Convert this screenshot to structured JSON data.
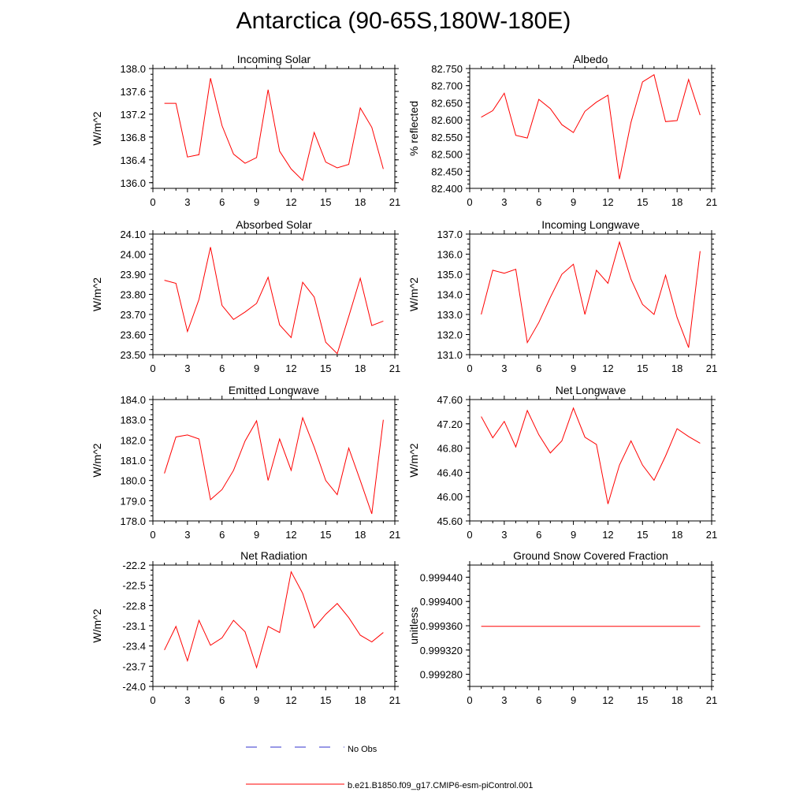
{
  "title": "Antarctica (90-65S,180W-180E)",
  "legend": {
    "obs_label": "No Obs",
    "obs_color": "#3333cc",
    "model_label": "b.e21.B1850.f09_g17.CMIP6-esm-piControl.001",
    "model_color": "#ff0000"
  },
  "chart_data": [
    {
      "type": "line",
      "title": "Incoming Solar",
      "xlabel": "",
      "ylabel": "W/m^2",
      "xlim": [
        0,
        21
      ],
      "xticks": [
        "0",
        "3",
        "6",
        "9",
        "12",
        "15",
        "18",
        "21"
      ],
      "ylim": [
        135.9,
        138.0
      ],
      "yticks": [
        "136.0",
        "136.4",
        "136.8",
        "137.2",
        "137.6",
        "138.0"
      ],
      "series": [
        {
          "name": "b.e21.B1850.f09_g17.CMIP6-esm-piControl.001",
          "color": "#ff0000",
          "x": [
            1,
            2,
            3,
            4,
            5,
            6,
            7,
            8,
            9,
            10,
            11,
            12,
            13,
            14,
            15,
            16,
            17,
            18,
            19,
            20
          ],
          "y": [
            137.39,
            137.39,
            136.45,
            136.49,
            137.83,
            137.0,
            136.5,
            136.34,
            136.44,
            137.63,
            136.55,
            136.24,
            136.04,
            136.88,
            136.36,
            136.26,
            136.32,
            137.31,
            136.97,
            136.24
          ]
        }
      ]
    },
    {
      "type": "line",
      "title": "Albedo",
      "xlabel": "",
      "ylabel": "% reflected",
      "xlim": [
        0,
        21
      ],
      "xticks": [
        "0",
        "3",
        "6",
        "9",
        "12",
        "15",
        "18",
        "21"
      ],
      "ylim": [
        82.4,
        82.75
      ],
      "yticks": [
        "82.400",
        "82.450",
        "82.500",
        "82.550",
        "82.600",
        "82.650",
        "82.700",
        "82.750"
      ],
      "series": [
        {
          "name": "b.e21.B1850.f09_g17.CMIP6-esm-piControl.001",
          "color": "#ff0000",
          "x": [
            1,
            2,
            3,
            4,
            5,
            6,
            7,
            8,
            9,
            10,
            11,
            12,
            13,
            14,
            15,
            16,
            17,
            18,
            19,
            20
          ],
          "y": [
            82.608,
            82.627,
            82.678,
            82.555,
            82.547,
            82.66,
            82.633,
            82.586,
            82.563,
            82.625,
            82.652,
            82.672,
            82.427,
            82.593,
            82.711,
            82.732,
            82.595,
            82.598,
            82.718,
            82.614
          ]
        }
      ]
    },
    {
      "type": "line",
      "title": "Absorbed Solar",
      "xlabel": "",
      "ylabel": "W/m^2",
      "xlim": [
        0,
        21
      ],
      "xticks": [
        "0",
        "3",
        "6",
        "9",
        "12",
        "15",
        "18",
        "21"
      ],
      "ylim": [
        23.5,
        24.1
      ],
      "yticks": [
        "23.50",
        "23.60",
        "23.70",
        "23.80",
        "23.90",
        "24.00",
        "24.10"
      ],
      "series": [
        {
          "name": "b.e21.B1850.f09_g17.CMIP6-esm-piControl.001",
          "color": "#ff0000",
          "x": [
            1,
            2,
            3,
            4,
            5,
            6,
            7,
            8,
            9,
            10,
            11,
            12,
            13,
            14,
            15,
            16,
            17,
            18,
            19,
            20
          ],
          "y": [
            23.87,
            23.855,
            23.615,
            23.775,
            24.035,
            23.745,
            23.675,
            23.712,
            23.755,
            23.885,
            23.648,
            23.585,
            23.86,
            23.787,
            23.562,
            23.505,
            23.69,
            23.88,
            23.645,
            23.667
          ]
        }
      ]
    },
    {
      "type": "line",
      "title": "Incoming Longwave",
      "xlabel": "",
      "ylabel": "W/m^2",
      "xlim": [
        0,
        21
      ],
      "xticks": [
        "0",
        "3",
        "6",
        "9",
        "12",
        "15",
        "18",
        "21"
      ],
      "ylim": [
        131.0,
        137.0
      ],
      "yticks": [
        "131.0",
        "132.0",
        "133.0",
        "134.0",
        "135.0",
        "136.0",
        "137.0"
      ],
      "series": [
        {
          "name": "b.e21.B1850.f09_g17.CMIP6-esm-piControl.001",
          "color": "#ff0000",
          "x": [
            1,
            2,
            3,
            4,
            5,
            6,
            7,
            8,
            9,
            10,
            11,
            12,
            13,
            14,
            15,
            16,
            17,
            18,
            19,
            20
          ],
          "y": [
            133.0,
            135.2,
            135.05,
            135.25,
            131.6,
            132.6,
            133.85,
            135.0,
            135.5,
            133.0,
            135.2,
            134.55,
            136.6,
            134.75,
            133.5,
            133.0,
            134.95,
            132.85,
            131.35,
            136.15
          ]
        }
      ]
    },
    {
      "type": "line",
      "title": "Emitted Longwave",
      "xlabel": "",
      "ylabel": "W/m^2",
      "xlim": [
        0,
        21
      ],
      "xticks": [
        "0",
        "3",
        "6",
        "9",
        "12",
        "15",
        "18",
        "21"
      ],
      "ylim": [
        178.0,
        184.0
      ],
      "yticks": [
        "178.0",
        "179.0",
        "180.0",
        "181.0",
        "182.0",
        "183.0",
        "184.0"
      ],
      "series": [
        {
          "name": "b.e21.B1850.f09_g17.CMIP6-esm-piControl.001",
          "color": "#ff0000",
          "x": [
            1,
            2,
            3,
            4,
            5,
            6,
            7,
            8,
            9,
            10,
            11,
            12,
            13,
            14,
            15,
            16,
            17,
            18,
            19,
            20
          ],
          "y": [
            180.35,
            182.15,
            182.25,
            182.05,
            179.05,
            179.55,
            180.5,
            181.95,
            182.95,
            180.0,
            182.05,
            180.5,
            183.1,
            181.65,
            180.0,
            179.3,
            181.6,
            180.0,
            178.35,
            183.0
          ]
        }
      ]
    },
    {
      "type": "line",
      "title": "Net Longwave",
      "xlabel": "",
      "ylabel": "W/m^2",
      "xlim": [
        0,
        21
      ],
      "xticks": [
        "0",
        "3",
        "6",
        "9",
        "12",
        "15",
        "18",
        "21"
      ],
      "ylim": [
        45.6,
        47.6
      ],
      "yticks": [
        "45.60",
        "46.00",
        "46.40",
        "46.80",
        "47.20",
        "47.60"
      ],
      "series": [
        {
          "name": "b.e21.B1850.f09_g17.CMIP6-esm-piControl.001",
          "color": "#ff0000",
          "x": [
            1,
            2,
            3,
            4,
            5,
            6,
            7,
            8,
            9,
            10,
            11,
            12,
            13,
            14,
            15,
            16,
            17,
            18,
            19,
            20
          ],
          "y": [
            47.32,
            46.97,
            47.24,
            46.82,
            47.42,
            47.02,
            46.72,
            46.92,
            47.46,
            46.98,
            46.86,
            45.88,
            46.52,
            46.92,
            46.52,
            46.27,
            46.67,
            47.12,
            46.99,
            46.88
          ]
        }
      ]
    },
    {
      "type": "line",
      "title": "Net Radiation",
      "xlabel": "",
      "ylabel": "W/m^2",
      "xlim": [
        0,
        21
      ],
      "xticks": [
        "0",
        "3",
        "6",
        "9",
        "12",
        "15",
        "18",
        "21"
      ],
      "ylim": [
        -24.0,
        -22.2
      ],
      "yticks": [
        "-24.0",
        "-23.7",
        "-23.4",
        "-23.1",
        "-22.8",
        "-22.5",
        "-22.2"
      ],
      "series": [
        {
          "name": "b.e21.B1850.f09_g17.CMIP6-esm-piControl.001",
          "color": "#ff0000",
          "x": [
            1,
            2,
            3,
            4,
            5,
            6,
            7,
            8,
            9,
            10,
            11,
            12,
            13,
            14,
            15,
            16,
            17,
            18,
            19,
            20
          ],
          "y": [
            -23.46,
            -23.11,
            -23.62,
            -23.02,
            -23.39,
            -23.28,
            -23.02,
            -23.19,
            -23.72,
            -23.11,
            -23.2,
            -22.3,
            -22.62,
            -23.13,
            -22.93,
            -22.77,
            -22.98,
            -23.24,
            -23.34,
            -23.2
          ]
        }
      ]
    },
    {
      "type": "line",
      "title": "Ground Snow Covered Fraction",
      "xlabel": "",
      "ylabel": "unitless",
      "xlim": [
        0,
        21
      ],
      "xticks": [
        "0",
        "3",
        "6",
        "9",
        "12",
        "15",
        "18",
        "21"
      ],
      "ylim": [
        0.99926,
        0.99946
      ],
      "yticks": [
        "0.999280",
        "0.999320",
        "0.999360",
        "0.999400",
        "0.999440"
      ],
      "series": [
        {
          "name": "b.e21.B1850.f09_g17.CMIP6-esm-piControl.001",
          "color": "#ff0000",
          "x": [
            1,
            2,
            3,
            4,
            5,
            6,
            7,
            8,
            9,
            10,
            11,
            12,
            13,
            14,
            15,
            16,
            17,
            18,
            19,
            20
          ],
          "y": [
            0.999359,
            0.999359,
            0.999359,
            0.999359,
            0.999359,
            0.999359,
            0.999359,
            0.999359,
            0.999359,
            0.999359,
            0.999359,
            0.999359,
            0.999359,
            0.999359,
            0.999359,
            0.999359,
            0.999359,
            0.999359,
            0.999359,
            0.999359
          ]
        }
      ]
    }
  ]
}
